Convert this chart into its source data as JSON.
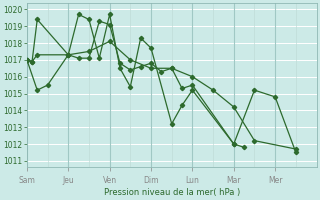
{
  "xlabel": "Pression niveau de la mer( hPa )",
  "bg_color": "#cceae7",
  "grid_color": "#b0d8d4",
  "line_color": "#2d6a2d",
  "ylim": [
    1011,
    1020
  ],
  "yticks": [
    1011,
    1012,
    1013,
    1014,
    1015,
    1016,
    1017,
    1018,
    1019,
    1020
  ],
  "day_labels": [
    "Sam",
    "Jeu",
    "Ven",
    "Dim",
    "Lun",
    "Mar",
    "Mer"
  ],
  "day_x": [
    0,
    48,
    96,
    144,
    192,
    240,
    288
  ],
  "xlim": [
    0,
    336
  ],
  "series": [
    {
      "x": [
        0,
        12,
        24,
        48,
        60,
        72,
        84,
        96,
        108,
        120,
        132,
        144,
        156,
        168,
        180,
        192,
        240,
        252
      ],
      "y": [
        1017,
        1015.2,
        1015.5,
        1017.3,
        1017.1,
        1017.1,
        1019.3,
        1019.1,
        1016.8,
        1016.4,
        1016.6,
        1016.8,
        1016.3,
        1016.5,
        1015.3,
        1015.5,
        1012.0,
        1011.8
      ]
    },
    {
      "x": [
        0,
        6,
        12,
        48,
        60,
        72,
        84,
        96,
        108,
        120,
        132,
        144,
        168,
        180,
        192,
        240,
        264,
        288,
        312
      ],
      "y": [
        1017,
        1016.9,
        1019.4,
        1017.3,
        1019.7,
        1019.4,
        1017.1,
        1019.7,
        1016.5,
        1015.4,
        1018.3,
        1017.7,
        1013.2,
        1014.3,
        1015.2,
        1012.0,
        1015.2,
        1014.8,
        1011.5
      ]
    },
    {
      "x": [
        0,
        6,
        12,
        48,
        72,
        96,
        120,
        144,
        168,
        192,
        216,
        240,
        264,
        312
      ],
      "y": [
        1017,
        1016.9,
        1017.3,
        1017.3,
        1017.5,
        1018.1,
        1017.0,
        1016.5,
        1016.5,
        1016.0,
        1015.2,
        1014.2,
        1012.2,
        1011.7
      ]
    }
  ]
}
